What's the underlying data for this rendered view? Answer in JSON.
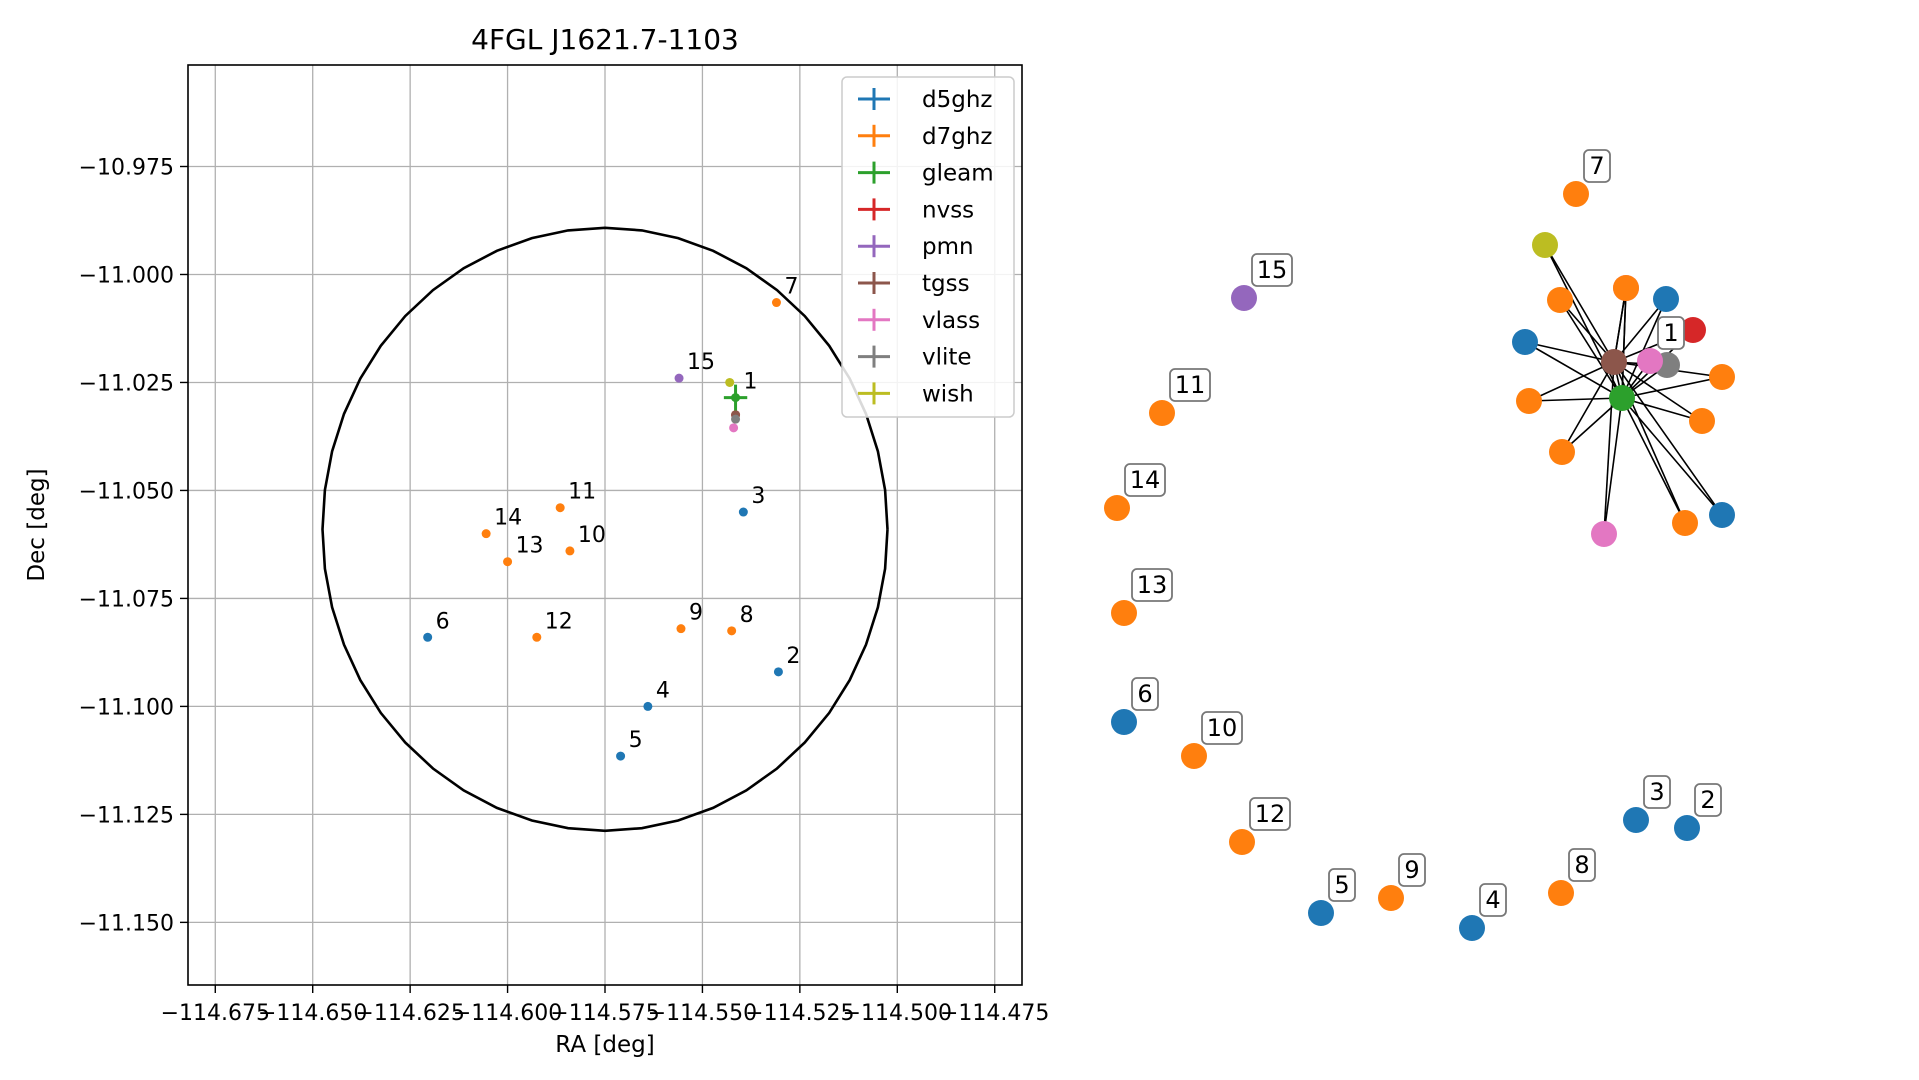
{
  "chart_data": [
    {
      "type": "scatter",
      "title": "4FGL J1621.7-1103",
      "xlabel": "RA [deg]",
      "ylabel": "Dec [deg]",
      "xlim": [
        -114.682,
        -114.468
      ],
      "ylim": [
        -11.1645,
        -10.9515
      ],
      "xticks": [
        -114.675,
        -114.65,
        -114.625,
        -114.6,
        -114.575,
        -114.55,
        -114.525,
        -114.5,
        -114.475
      ],
      "xtick_labels": [
        "−114.675",
        "−114.650",
        "−114.625",
        "−114.600",
        "−114.575",
        "−114.550",
        "−114.525",
        "−114.500",
        "−114.475"
      ],
      "yticks": [
        -10.975,
        -11.0,
        -11.025,
        -11.05,
        -11.075,
        -11.1,
        -11.125,
        -11.15
      ],
      "ytick_labels": [
        "−10.975",
        "−11.000",
        "−11.025",
        "−11.050",
        "−11.075",
        "−11.100",
        "−11.125",
        "−11.150"
      ],
      "grid": true,
      "legend_position": "top-right",
      "circle": {
        "center_ra": -114.575,
        "center_dec": -11.059,
        "radius_ra": 0.0725,
        "radius_dec": 0.0698,
        "color": "#000000"
      },
      "series": [
        {
          "name": "d5ghz",
          "color": "#1f77b4"
        },
        {
          "name": "d7ghz",
          "color": "#ff7f0e"
        },
        {
          "name": "gleam",
          "color": "#2ca02c"
        },
        {
          "name": "nvss",
          "color": "#d62728"
        },
        {
          "name": "pmn",
          "color": "#9467bd"
        },
        {
          "name": "tgss",
          "color": "#8c564b"
        },
        {
          "name": "vlass",
          "color": "#e377c2"
        },
        {
          "name": "vlite",
          "color": "#7f7f7f"
        },
        {
          "name": "wish",
          "color": "#bcbd22"
        }
      ],
      "points": [
        {
          "label": "1",
          "series": "gleam",
          "ra": -114.5415,
          "dec": -11.0285,
          "err_ra": 0.003,
          "err_dec": 0.003
        },
        {
          "label": "",
          "series": "nvss",
          "ra": -114.5415,
          "dec": -11.0325
        },
        {
          "label": "",
          "series": "tgss",
          "ra": -114.5415,
          "dec": -11.0325
        },
        {
          "label": "",
          "series": "vlite",
          "ra": -114.5415,
          "dec": -11.0335
        },
        {
          "label": "",
          "series": "vlass",
          "ra": -114.542,
          "dec": -11.0355
        },
        {
          "label": "",
          "series": "wish",
          "ra": -114.543,
          "dec": -11.025
        },
        {
          "label": "2",
          "series": "d5ghz",
          "ra": -114.5305,
          "dec": -11.092
        },
        {
          "label": "3",
          "series": "d5ghz",
          "ra": -114.5395,
          "dec": -11.055
        },
        {
          "label": "4",
          "series": "d5ghz",
          "ra": -114.564,
          "dec": -11.1
        },
        {
          "label": "5",
          "series": "d5ghz",
          "ra": -114.571,
          "dec": -11.1115
        },
        {
          "label": "6",
          "series": "d5ghz",
          "ra": -114.6205,
          "dec": -11.084
        },
        {
          "label": "7",
          "series": "d7ghz",
          "ra": -114.531,
          "dec": -11.0065
        },
        {
          "label": "8",
          "series": "d7ghz",
          "ra": -114.5425,
          "dec": -11.0825
        },
        {
          "label": "9",
          "series": "d7ghz",
          "ra": -114.5555,
          "dec": -11.082
        },
        {
          "label": "10",
          "series": "d7ghz",
          "ra": -114.584,
          "dec": -11.064
        },
        {
          "label": "11",
          "series": "d7ghz",
          "ra": -114.5865,
          "dec": -11.054
        },
        {
          "label": "12",
          "series": "d7ghz",
          "ra": -114.5925,
          "dec": -11.084
        },
        {
          "label": "13",
          "series": "d7ghz",
          "ra": -114.6,
          "dec": -11.0665
        },
        {
          "label": "14",
          "series": "d7ghz",
          "ra": -114.6055,
          "dec": -11.06
        },
        {
          "label": "15",
          "series": "pmn",
          "ra": -114.556,
          "dec": -11.024
        }
      ]
    },
    {
      "type": "network",
      "labeled_nodes": [
        {
          "label": "1",
          "color": "#e377c2"
        },
        {
          "label": "2",
          "color": "#1f77b4"
        },
        {
          "label": "3",
          "color": "#1f77b4"
        },
        {
          "label": "4",
          "color": "#1f77b4"
        },
        {
          "label": "5",
          "color": "#1f77b4"
        },
        {
          "label": "6",
          "color": "#1f77b4"
        },
        {
          "label": "7",
          "color": "#ff7f0e"
        },
        {
          "label": "8",
          "color": "#ff7f0e"
        },
        {
          "label": "9",
          "color": "#ff7f0e"
        },
        {
          "label": "10",
          "color": "#ff7f0e"
        },
        {
          "label": "11",
          "color": "#ff7f0e"
        },
        {
          "label": "12",
          "color": "#ff7f0e"
        },
        {
          "label": "13",
          "color": "#ff7f0e"
        },
        {
          "label": "14",
          "color": "#ff7f0e"
        },
        {
          "label": "15",
          "color": "#9467bd"
        }
      ],
      "cluster_hub_colors": [
        "#2ca02c",
        "#8c564b"
      ],
      "cluster_member_colors": [
        "#bcbd22",
        "#ff7f0e",
        "#e377c2",
        "#ff7f0e",
        "#1f77b4",
        "#1f77b4",
        "#d62728",
        "#7f7f7f",
        "#ff7f0e",
        "#ff7f0e",
        "#ff7f0e",
        "#ff7f0e",
        "#ff7f0e",
        "#e377c2",
        "#1f77b4"
      ]
    }
  ]
}
